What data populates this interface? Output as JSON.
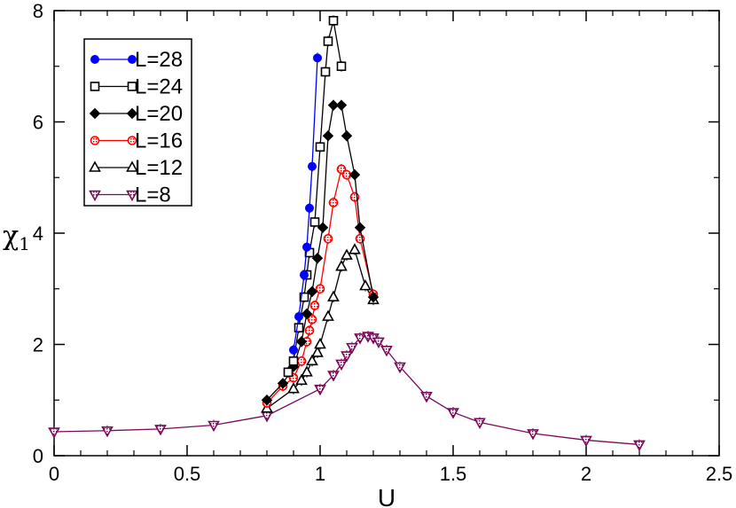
{
  "chart_data": {
    "type": "line",
    "title": "",
    "xlabel": "U",
    "ylabel": "χ",
    "ylabel_sub": "1",
    "xlim": [
      0,
      2.5
    ],
    "ylim": [
      0,
      8
    ],
    "xticks": [
      0,
      0.5,
      1,
      1.5,
      2,
      2.5
    ],
    "xtick_labels": [
      "0",
      "0.5",
      "1",
      "1.5",
      "2",
      "2.5"
    ],
    "yticks": [
      0,
      2,
      4,
      6,
      8
    ],
    "ytick_labels": [
      "0",
      "2",
      "4",
      "6",
      "8"
    ],
    "grid": false,
    "legend_position": "top-left",
    "series": [
      {
        "name": "L=28",
        "color": "#0000ff",
        "marker": "circle-filled",
        "x": [
          0.9,
          0.92,
          0.94,
          0.95,
          0.96,
          0.97,
          0.99
        ],
        "y": [
          1.9,
          2.5,
          3.25,
          3.75,
          4.45,
          5.2,
          7.15
        ]
      },
      {
        "name": "L=24",
        "color": "#000000",
        "marker": "square-open",
        "x": [
          0.88,
          0.9,
          0.92,
          0.94,
          0.95,
          0.96,
          0.98,
          1.0,
          1.02,
          1.03,
          1.05,
          1.08
        ],
        "y": [
          1.5,
          1.7,
          2.3,
          2.85,
          3.25,
          3.65,
          4.2,
          5.55,
          6.9,
          7.45,
          7.82,
          7.0
        ]
      },
      {
        "name": "L=20",
        "color": "#000000",
        "marker": "diamond-filled",
        "x": [
          0.8,
          0.86,
          0.9,
          0.93,
          0.95,
          0.97,
          0.99,
          1.01,
          1.03,
          1.05,
          1.08,
          1.1,
          1.13,
          1.15,
          1.2
        ],
        "y": [
          1.0,
          1.3,
          1.6,
          2.05,
          2.55,
          2.95,
          3.55,
          4.1,
          5.75,
          6.3,
          6.3,
          5.75,
          5.05,
          4.1,
          2.85
        ]
      },
      {
        "name": "L=16",
        "color": "#ff0000",
        "marker": "circle-hatched",
        "x": [
          0.8,
          0.86,
          0.9,
          0.93,
          0.95,
          0.96,
          0.97,
          0.98,
          1.0,
          1.03,
          1.05,
          1.08,
          1.1,
          1.13,
          1.15,
          1.2
        ],
        "y": [
          0.95,
          1.25,
          1.4,
          1.7,
          2.05,
          2.25,
          2.45,
          2.7,
          3.0,
          3.9,
          4.55,
          5.15,
          5.05,
          4.65,
          3.9,
          2.9
        ]
      },
      {
        "name": "L=12",
        "color": "#000000",
        "marker": "triangle-up-open",
        "x": [
          0.8,
          0.9,
          0.93,
          0.95,
          0.97,
          0.99,
          1.0,
          1.03,
          1.05,
          1.08,
          1.1,
          1.13,
          1.17,
          1.2
        ],
        "y": [
          0.85,
          1.2,
          1.35,
          1.5,
          1.7,
          1.85,
          2.0,
          2.5,
          2.85,
          3.4,
          3.6,
          3.7,
          3.05,
          2.8
        ]
      },
      {
        "name": "L=8",
        "color": "#7a0a5a",
        "marker": "triangle-down-open",
        "x": [
          0,
          0.2,
          0.4,
          0.6,
          0.8,
          1.0,
          1.05,
          1.08,
          1.1,
          1.12,
          1.15,
          1.18,
          1.2,
          1.22,
          1.25,
          1.3,
          1.4,
          1.5,
          1.6,
          1.8,
          2.0,
          2.2
        ],
        "y": [
          0.43,
          0.45,
          0.48,
          0.55,
          0.72,
          1.2,
          1.45,
          1.65,
          1.8,
          1.95,
          2.12,
          2.15,
          2.12,
          2.05,
          1.9,
          1.6,
          1.07,
          0.78,
          0.6,
          0.4,
          0.28,
          0.2
        ]
      }
    ]
  }
}
